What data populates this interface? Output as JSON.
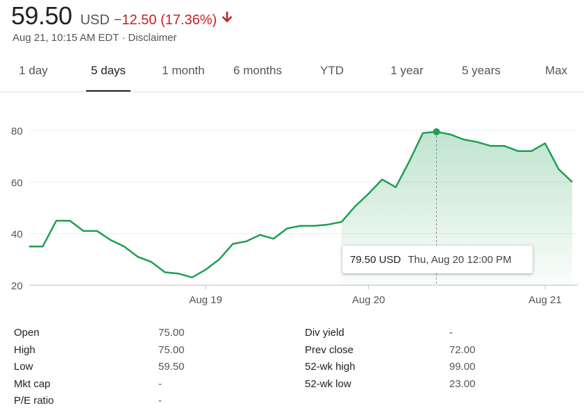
{
  "quote": {
    "price": "59.50",
    "currency": "USD",
    "change": "−12.50 (17.36%)",
    "timestamp": "Aug 21, 10:15 AM EDT · ",
    "disclaimer": "Disclaimer",
    "trend": "down",
    "down_color": "#c5221f"
  },
  "tabs": [
    {
      "label": "1 day",
      "active": false
    },
    {
      "label": "5 days",
      "active": true
    },
    {
      "label": "1 month",
      "active": false
    },
    {
      "label": "6 months",
      "active": false
    },
    {
      "label": "YTD",
      "active": false
    },
    {
      "label": "1 year",
      "active": false
    },
    {
      "label": "5 years",
      "active": false
    },
    {
      "label": "Max",
      "active": false
    }
  ],
  "tooltip": {
    "value": "79.50 USD",
    "date": "Thu, Aug 20 12:00 PM"
  },
  "chart_data": {
    "type": "area",
    "ylim": [
      20,
      80
    ],
    "y_ticks": [
      "80",
      "60",
      "40",
      "20"
    ],
    "x_tick_labels": [
      {
        "label": "Aug 19",
        "index": 13
      },
      {
        "label": "Aug 20",
        "index": 25
      },
      {
        "label": "Aug 21",
        "index": 38
      }
    ],
    "line_color": "#1e9e52",
    "values": [
      35,
      35,
      45,
      45,
      41,
      41,
      37.5,
      35,
      31,
      29,
      25,
      24.5,
      23,
      26,
      30,
      36,
      37,
      39.5,
      38,
      42,
      43,
      43,
      43.5,
      44.5,
      50.5,
      55.5,
      61,
      58,
      68,
      79,
      79.5,
      78.5,
      76.5,
      75.5,
      74,
      74,
      72,
      72,
      75,
      65,
      60
    ],
    "highlight_index": 30,
    "highlight_value": 79.5
  },
  "stats": {
    "left": [
      {
        "label": "Open",
        "value": "75.00"
      },
      {
        "label": "High",
        "value": "75.00"
      },
      {
        "label": "Low",
        "value": "59.50"
      },
      {
        "label": "Mkt cap",
        "value": "-"
      },
      {
        "label": "P/E ratio",
        "value": "-"
      }
    ],
    "right": [
      {
        "label": "Div yield",
        "value": "-"
      },
      {
        "label": "Prev close",
        "value": "72.00"
      },
      {
        "label": "52-wk high",
        "value": "99.00"
      },
      {
        "label": "52-wk low",
        "value": "23.00"
      }
    ]
  }
}
